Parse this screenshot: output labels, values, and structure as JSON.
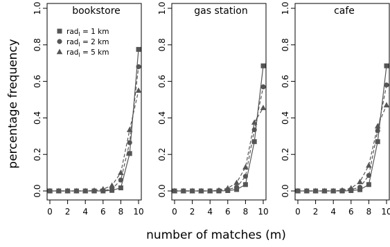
{
  "ylabel": "percentage frequency",
  "xlabel": "number of matches (m)",
  "legend": [
    {
      "marker": "square",
      "text": "rad",
      "sub": "l",
      "rest": " = 1 km"
    },
    {
      "marker": "circle",
      "text": "rad",
      "sub": "l",
      "rest": " = 2 km"
    },
    {
      "marker": "triangle",
      "text": "rad",
      "sub": "l",
      "rest": " = 5 km"
    }
  ],
  "colors": {
    "series": "#555555"
  },
  "chart_data": [
    {
      "type": "line",
      "title": "bookstore",
      "x": [
        0,
        1,
        2,
        3,
        4,
        5,
        6,
        7,
        8,
        9,
        10
      ],
      "xticks": [
        "0",
        "2",
        "4",
        "6",
        "8",
        "10"
      ],
      "yticks": [
        "0.0",
        "0.2",
        "0.4",
        "0.6",
        "0.8",
        "1.0"
      ],
      "xlim": [
        0,
        10
      ],
      "ylim": [
        0,
        1
      ],
      "series": [
        {
          "name": "rad_l = 1 km",
          "marker": "square",
          "dash": "solid",
          "values": [
            0,
            0,
            0,
            0,
            0,
            0,
            0,
            0.003,
            0.017,
            0.205,
            0.775
          ]
        },
        {
          "name": "rad_l = 2 km",
          "marker": "circle",
          "dash": "dashed",
          "values": [
            0,
            0,
            0,
            0,
            0,
            0,
            0.002,
            0.01,
            0.06,
            0.265,
            0.68
          ]
        },
        {
          "name": "rad_l = 5 km",
          "marker": "triangle",
          "dash": "dashed",
          "values": [
            0,
            0,
            0,
            0,
            0,
            0.003,
            0.01,
            0.03,
            0.1,
            0.335,
            0.55
          ]
        }
      ]
    },
    {
      "type": "line",
      "title": "gas station",
      "x": [
        0,
        1,
        2,
        3,
        4,
        5,
        6,
        7,
        8,
        9,
        10
      ],
      "xticks": [
        "0",
        "2",
        "4",
        "6",
        "8",
        "10"
      ],
      "yticks": [
        "0.0",
        "0.2",
        "0.4",
        "0.6",
        "0.8",
        "1.0"
      ],
      "xlim": [
        0,
        10
      ],
      "ylim": [
        0,
        1
      ],
      "series": [
        {
          "name": "rad_l = 1 km",
          "marker": "square",
          "dash": "solid",
          "values": [
            0,
            0,
            0,
            0,
            0,
            0,
            0.002,
            0.008,
            0.035,
            0.27,
            0.685
          ]
        },
        {
          "name": "rad_l = 2 km",
          "marker": "circle",
          "dash": "dashed",
          "values": [
            0,
            0,
            0,
            0,
            0,
            0.002,
            0.008,
            0.02,
            0.08,
            0.335,
            0.57
          ]
        },
        {
          "name": "rad_l = 5 km",
          "marker": "triangle",
          "dash": "dashed",
          "values": [
            0,
            0,
            0,
            0,
            0,
            0.004,
            0.015,
            0.045,
            0.13,
            0.375,
            0.455
          ]
        }
      ]
    },
    {
      "type": "line",
      "title": "cafe",
      "x": [
        0,
        1,
        2,
        3,
        4,
        5,
        6,
        7,
        8,
        9,
        10
      ],
      "xticks": [
        "0",
        "2",
        "4",
        "6",
        "8",
        "10"
      ],
      "yticks": [
        "0.0",
        "0.2",
        "0.4",
        "0.6",
        "0.8",
        "1.0"
      ],
      "xlim": [
        0,
        10
      ],
      "ylim": [
        0,
        1
      ],
      "series": [
        {
          "name": "rad_l = 1 km",
          "marker": "square",
          "dash": "solid",
          "values": [
            0,
            0,
            0,
            0,
            0,
            0,
            0.002,
            0.007,
            0.035,
            0.27,
            0.685
          ]
        },
        {
          "name": "rad_l = 2 km",
          "marker": "circle",
          "dash": "dashed",
          "values": [
            0,
            0,
            0,
            0,
            0,
            0.002,
            0.008,
            0.02,
            0.085,
            0.33,
            0.58
          ]
        },
        {
          "name": "rad_l = 5 km",
          "marker": "triangle",
          "dash": "dashed",
          "values": [
            0,
            0,
            0,
            0,
            0,
            0.004,
            0.015,
            0.05,
            0.14,
            0.355,
            0.47
          ]
        }
      ]
    }
  ]
}
